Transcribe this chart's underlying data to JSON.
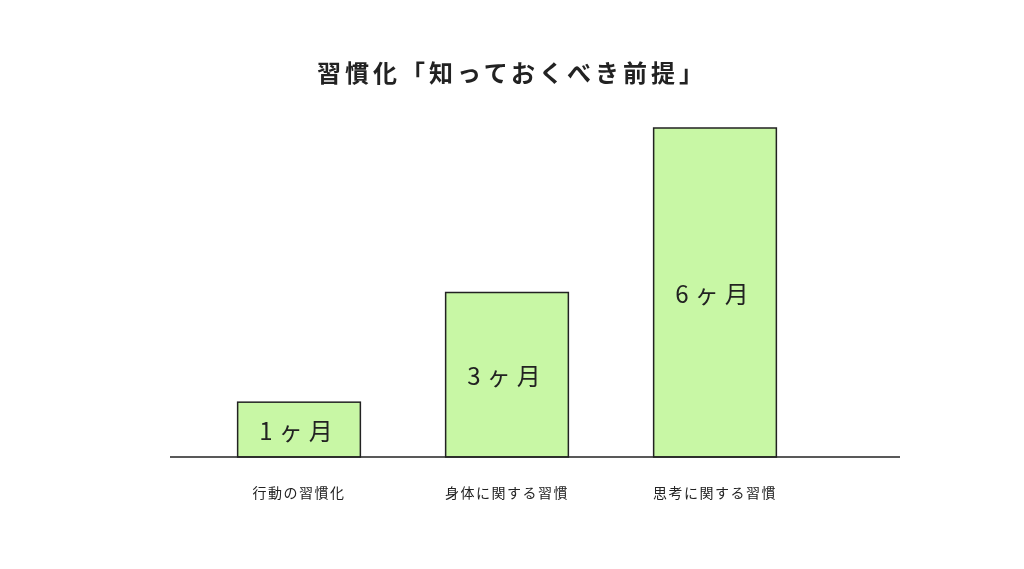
{
  "chart_data": {
    "type": "bar",
    "title": "習慣化「知っておくべき前提」",
    "categories": [
      "行動の習慣化",
      "身体に関する習慣",
      "思考に関する習慣"
    ],
    "values": [
      1,
      3,
      6
    ],
    "color": "#c8f7a5",
    "value_labels": [
      "1ヶ月",
      "3ヶ月",
      "6ヶ月"
    ],
    "grid": false
  }
}
